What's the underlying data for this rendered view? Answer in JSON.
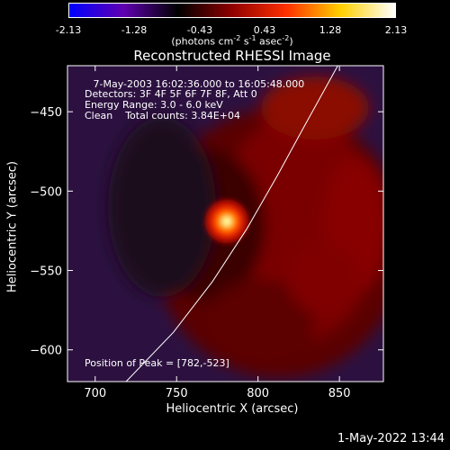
{
  "chart_data": {
    "type": "heatmap",
    "title": "Reconstructed RHESSI Image",
    "xlabel": "Heliocentric X (arcsec)",
    "ylabel": "Heliocentric Y (arcsec)",
    "xlim": [
      683,
      877
    ],
    "ylim": [
      -620,
      -421
    ],
    "xticks": [
      700,
      750,
      800,
      850
    ],
    "yticks": [
      -450,
      -500,
      -550,
      -600
    ],
    "colorbar": {
      "range": [
        -2.13,
        2.13
      ],
      "ticks": [
        "-2.13",
        "-1.28",
        "-0.43",
        "0.43",
        "1.28",
        "2.13"
      ],
      "units_prefix": "(photons cm",
      "units_sup1": "-2",
      "units_mid1": " s",
      "units_sup2": "-1",
      "units_mid2": " asec",
      "units_sup3": "-2",
      "units_suffix": ")",
      "colors": [
        "#0000ff",
        "#6000b0",
        "#000000",
        "#900000",
        "#ff3000",
        "#ffd000",
        "#ffffff"
      ]
    },
    "peak": {
      "x": 782,
      "y": -523
    },
    "solar_limb": [
      [
        719,
        -620
      ],
      [
        748,
        -589
      ],
      [
        772,
        -557
      ],
      [
        793,
        -524
      ],
      [
        812,
        -490
      ],
      [
        828,
        -460
      ],
      [
        849,
        -421
      ]
    ],
    "annotations": {
      "time_range": " 7-May-2003 16:02:36.000 to 16:05:48.000",
      "detectors": "Detectors: 3F 4F 5F 6F 7F 8F, Att 0",
      "energy": "Energy Range: 3.0 - 6.0 keV",
      "clean": "Clean    Total counts: 3.84E+04",
      "peak_position": "Position of Peak = [782,-523]"
    }
  },
  "timestamp": "1-May-2022 13:44"
}
